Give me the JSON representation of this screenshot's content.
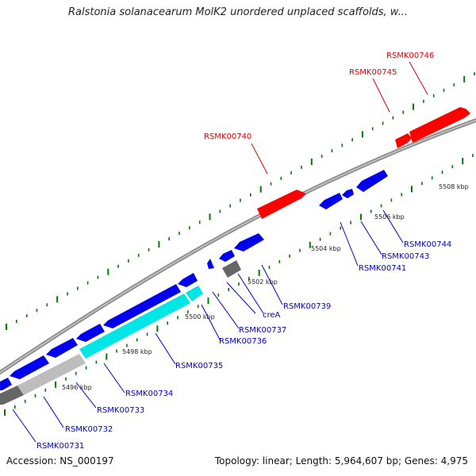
{
  "title": "Ralstonia solanacearum MolK2 unordered unplaced scaffolds, w...",
  "footer": {
    "accession": "Accession: NS_000197",
    "summary": "Topology: linear; Length: 5,964,607 bp; Genes: 4,975"
  },
  "scale_labels": [
    "5496 kbp",
    "5498 kbp",
    "5500 kbp",
    "5502 kbp",
    "5504 kbp",
    "5506 kbp",
    "5508 kbp"
  ],
  "genes_top": [
    "RSMK00740",
    "RSMK00745",
    "RSMK00746"
  ],
  "genes_bottom": [
    "RSMK00731",
    "RSMK00732",
    "RSMK00733",
    "RSMK00734",
    "RSMK00735",
    "RSMK00736",
    "RSMK00737",
    "creA",
    "RSMK00739",
    "RSMK00741",
    "RSMK00743",
    "RSMK00744"
  ],
  "colors": {
    "forward_gene": "#ff0000",
    "reverse_gene": "#0000ee",
    "highlight_gene": "#00e5e5",
    "gray_gene": "#9a9a9a",
    "backbone": "#888888",
    "tick": "#007a00",
    "label_red": "#e00000",
    "label_blue": "#0000cc"
  }
}
